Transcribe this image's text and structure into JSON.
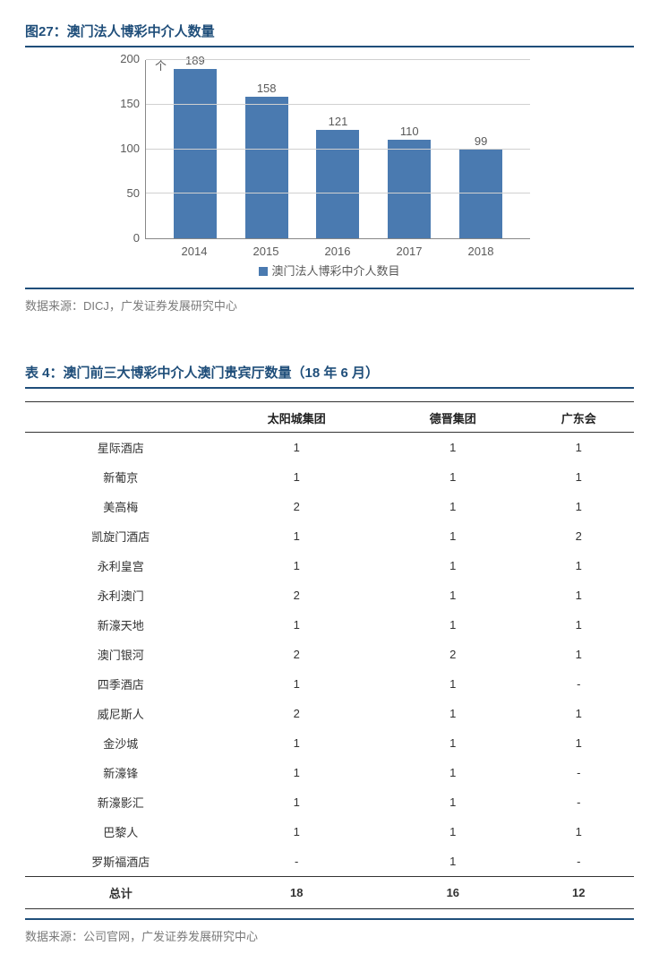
{
  "figure": {
    "title": "图27：澳门法人博彩中介人数量",
    "y_unit": "个",
    "type": "bar",
    "categories": [
      "2014",
      "2015",
      "2016",
      "2017",
      "2018"
    ],
    "values": [
      189,
      158,
      121,
      110,
      99
    ],
    "bar_color": "#4a7ab0",
    "ylim_max": 200,
    "ytick_step": 50,
    "yticks": [
      "200",
      "150",
      "100",
      "50",
      "0"
    ],
    "legend_label": "澳门法人博彩中介人数目",
    "grid_color": "#d0d0d0",
    "axis_color": "#888888",
    "background_color": "#ffffff",
    "source": "数据来源：DICJ，广发证券发展研究中心"
  },
  "table": {
    "title": "表 4：澳门前三大博彩中介人澳门贵宾厅数量（18 年 6 月）",
    "columns": [
      "",
      "太阳城集团",
      "德晋集团",
      "广东会"
    ],
    "rows": [
      [
        "星际酒店",
        "1",
        "1",
        "1"
      ],
      [
        "新葡京",
        "1",
        "1",
        "1"
      ],
      [
        "美高梅",
        "2",
        "1",
        "1"
      ],
      [
        "凯旋门酒店",
        "1",
        "1",
        "2"
      ],
      [
        "永利皇宫",
        "1",
        "1",
        "1"
      ],
      [
        "永利澳门",
        "2",
        "1",
        "1"
      ],
      [
        "新濠天地",
        "1",
        "1",
        "1"
      ],
      [
        "澳门银河",
        "2",
        "2",
        "1"
      ],
      [
        "四季酒店",
        "1",
        "1",
        "-"
      ],
      [
        "威尼斯人",
        "2",
        "1",
        "1"
      ],
      [
        "金沙城",
        "1",
        "1",
        "1"
      ],
      [
        "新濠锋",
        "1",
        "1",
        "-"
      ],
      [
        "新濠影汇",
        "1",
        "1",
        "-"
      ],
      [
        "巴黎人",
        "1",
        "1",
        "1"
      ],
      [
        "罗斯福酒店",
        "-",
        "1",
        "-"
      ]
    ],
    "footer": [
      "总计",
      "18",
      "16",
      "12"
    ],
    "source": "数据来源：公司官网，广发证券发展研究中心"
  }
}
